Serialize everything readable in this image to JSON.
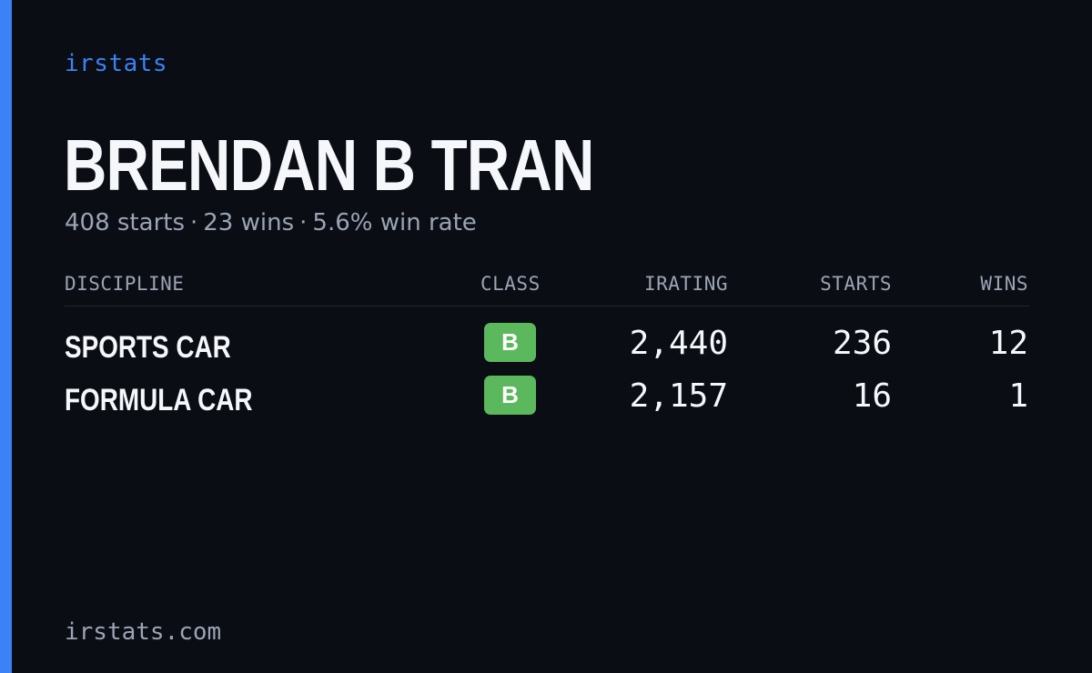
{
  "brand": "irstats",
  "player": {
    "name": "BRENDAN B TRAN",
    "starts": "408 starts",
    "wins": "23 wins",
    "win_rate": "5.6% win rate",
    "separator": "·"
  },
  "table": {
    "headers": {
      "discipline": "DISCIPLINE",
      "class": "CLASS",
      "irating": "IRATING",
      "starts": "STARTS",
      "wins": "WINS"
    },
    "rows": [
      {
        "discipline": "SPORTS CAR",
        "class": "B",
        "irating": "2,440",
        "starts": "236",
        "wins": "12"
      },
      {
        "discipline": "FORMULA CAR",
        "class": "B",
        "irating": "2,157",
        "starts": "16",
        "wins": "1"
      }
    ]
  },
  "footer": "irstats.com",
  "colors": {
    "background": "#0a0d14",
    "accent": "#3b82f6",
    "class_b": "#5cb85c",
    "text_primary": "#f5f7fb",
    "text_muted": "#9ba4b4"
  }
}
